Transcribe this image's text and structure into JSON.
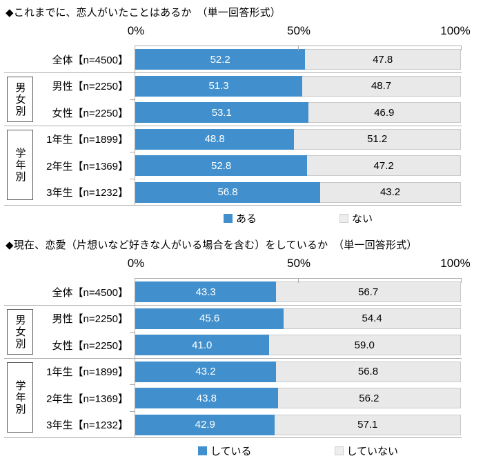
{
  "chart_data": [
    {
      "type": "bar",
      "orientation": "horizontal",
      "stacked": true,
      "title": "◆これまでに、恋人がいたことはあるか　（単一回答形式）",
      "axis_ticks": [
        "0%",
        "50%",
        "100%"
      ],
      "xlim": [
        0,
        100
      ],
      "grid": false,
      "legend_position": "bottom",
      "colors": {
        "primary": "#4190CD",
        "rest": "#E9E9E9"
      },
      "groups": [
        {
          "label": "男女別",
          "rows": [
            1,
            2
          ]
        },
        {
          "label": "学年別",
          "rows": [
            3,
            4,
            5
          ]
        }
      ],
      "categories": [
        "全体【n=4500】",
        "男性【n=2250】",
        "女性【n=2250】",
        "1年生【n=1899】",
        "2年生【n=1369】",
        "3年生【n=1232】"
      ],
      "series": [
        {
          "name": "ある",
          "values": [
            52.2,
            51.3,
            53.1,
            48.8,
            52.8,
            56.8
          ]
        },
        {
          "name": "ない",
          "values": [
            47.8,
            48.7,
            46.9,
            51.2,
            47.2,
            43.2
          ]
        }
      ],
      "rows": [
        {
          "label": "全体【n=4500】",
          "value": 52.2,
          "value_text": "52.2",
          "rest_text": "47.8"
        },
        {
          "label": "男性【n=2250】",
          "value": 51.3,
          "value_text": "51.3",
          "rest_text": "48.7"
        },
        {
          "label": "女性【n=2250】",
          "value": 53.1,
          "value_text": "53.1",
          "rest_text": "46.9"
        },
        {
          "label": "1年生【n=1899】",
          "value": 48.8,
          "value_text": "48.8",
          "rest_text": "51.2"
        },
        {
          "label": "2年生【n=1369】",
          "value": 52.8,
          "value_text": "52.8",
          "rest_text": "47.2"
        },
        {
          "label": "3年生【n=1232】",
          "value": 56.8,
          "value_text": "56.8",
          "rest_text": "43.2"
        }
      ],
      "legend": [
        {
          "label": "ある",
          "color": "#4190CD"
        },
        {
          "label": "ない",
          "color": "#EDEDED"
        }
      ]
    },
    {
      "type": "bar",
      "orientation": "horizontal",
      "stacked": true,
      "title": "◆現在、恋愛（片想いなど好きな人がいる場合を含む）をしているか　（単一回答形式）",
      "axis_ticks": [
        "0%",
        "50%",
        "100%"
      ],
      "xlim": [
        0,
        100
      ],
      "grid": false,
      "legend_position": "bottom",
      "colors": {
        "primary": "#4190CD",
        "rest": "#E9E9E9"
      },
      "groups": [
        {
          "label": "男女別",
          "rows": [
            1,
            2
          ]
        },
        {
          "label": "学年別",
          "rows": [
            3,
            4,
            5
          ]
        }
      ],
      "categories": [
        "全体【n=4500】",
        "男性【n=2250】",
        "女性【n=2250】",
        "1年生【n=1899】",
        "2年生【n=1369】",
        "3年生【n=1232】"
      ],
      "series": [
        {
          "name": "している",
          "values": [
            43.3,
            45.6,
            41.0,
            43.2,
            43.8,
            42.9
          ]
        },
        {
          "name": "していない",
          "values": [
            56.7,
            54.4,
            59.0,
            56.8,
            56.2,
            57.1
          ]
        }
      ],
      "rows": [
        {
          "label": "全体【n=4500】",
          "value": 43.3,
          "value_text": "43.3",
          "rest_text": "56.7"
        },
        {
          "label": "男性【n=2250】",
          "value": 45.6,
          "value_text": "45.6",
          "rest_text": "54.4"
        },
        {
          "label": "女性【n=2250】",
          "value": 41.0,
          "value_text": "41.0",
          "rest_text": "59.0"
        },
        {
          "label": "1年生【n=1899】",
          "value": 43.2,
          "value_text": "43.2",
          "rest_text": "56.8"
        },
        {
          "label": "2年生【n=1369】",
          "value": 43.8,
          "value_text": "43.8",
          "rest_text": "56.2"
        },
        {
          "label": "3年生【n=1232】",
          "value": 42.9,
          "value_text": "42.9",
          "rest_text": "57.1"
        }
      ],
      "legend": [
        {
          "label": "している",
          "color": "#4190CD"
        },
        {
          "label": "していない",
          "color": "#EDEDED"
        }
      ]
    }
  ]
}
